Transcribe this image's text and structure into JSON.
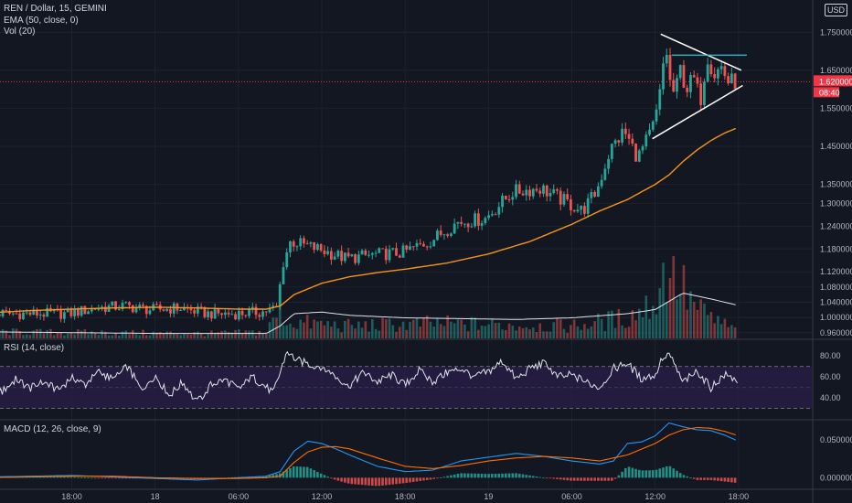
{
  "header": {
    "symbol_line": "REN / Dollar, 15, GEMINI",
    "ema_label": "EMA (50, close, 0)",
    "vol_label": "Vol (20)",
    "currency_badge": "USD"
  },
  "panes": {
    "rsi_label": "RSI (14, close)",
    "macd_label": "MACD (12, 26, close, 9)"
  },
  "price_badges": {
    "last_price": "1.620000",
    "countdown": "08:40"
  },
  "colors": {
    "background": "#131722",
    "up": "#26a69a",
    "down": "#ef5350",
    "ema": "#f7931a",
    "rsi_band": "#2a1f4a",
    "macd_line": "#2196f3",
    "signal_line": "#ff6d00",
    "last_price_badge": "#f23645",
    "grid": "#1e222d"
  },
  "chart_data": [
    {
      "type": "candlestick",
      "pane": "price",
      "yticks": [
        "1.750000",
        "1.650000",
        "1.550000",
        "1.450000",
        "1.350000",
        "1.300000",
        "1.240000",
        "1.180000",
        "1.120000",
        "1.080000",
        "1.040000",
        "1.000000",
        "0.960000"
      ],
      "ytick_values": [
        1.75,
        1.65,
        1.55,
        1.45,
        1.35,
        1.3,
        1.24,
        1.18,
        1.12,
        1.08,
        1.04,
        1.0,
        0.96
      ],
      "ylim": [
        0.945,
        1.83
      ],
      "xticks": [
        "18:00",
        "18",
        "06:00",
        "12:00",
        "18:00",
        "19",
        "06:00",
        "12:00",
        "18:00"
      ],
      "xtick_hours": [
        0,
        6,
        12,
        18,
        24,
        30,
        36,
        42,
        48
      ],
      "series": [
        {
          "name": "EMA (50, close, 0)",
          "hours": [
            -6.2,
            -3,
            0,
            3,
            6,
            9,
            12,
            14,
            15,
            16,
            18,
            20,
            22,
            24,
            27,
            30,
            33,
            36,
            38,
            40,
            42,
            43,
            44,
            45,
            46,
            47,
            48
          ],
          "values": [
            1.012,
            1.018,
            1.022,
            1.025,
            1.027,
            1.025,
            1.022,
            1.022,
            1.03,
            1.06,
            1.09,
            1.107,
            1.118,
            1.127,
            1.143,
            1.167,
            1.2,
            1.245,
            1.28,
            1.31,
            1.35,
            1.375,
            1.41,
            1.44,
            1.465,
            1.485,
            1.5
          ]
        }
      ],
      "anchors": {
        "hours": [
          -6.2,
          -3,
          0,
          2,
          4,
          6,
          8,
          10,
          12,
          14,
          15,
          15.5,
          16,
          17,
          18,
          20,
          22,
          24,
          26,
          28,
          30,
          32,
          34,
          36,
          37,
          38,
          39,
          40,
          41,
          42,
          42.5,
          43,
          43.3,
          43.7,
          44,
          44.5,
          45,
          45.5,
          46,
          46.5,
          47,
          47.5,
          48
        ],
        "close": [
          1.01,
          1.01,
          1.01,
          1.025,
          1.03,
          1.02,
          1.025,
          1.01,
          1.01,
          1.015,
          1.025,
          1.15,
          1.2,
          1.19,
          1.18,
          1.155,
          1.165,
          1.17,
          1.2,
          1.25,
          1.26,
          1.33,
          1.34,
          1.3,
          1.28,
          1.33,
          1.44,
          1.49,
          1.42,
          1.49,
          1.56,
          1.72,
          1.62,
          1.58,
          1.66,
          1.6,
          1.63,
          1.57,
          1.69,
          1.64,
          1.66,
          1.62,
          1.62
        ]
      },
      "pattern": {
        "upper_line": {
          "hours": [
            42.4,
            48.2
          ],
          "prices": [
            1.745,
            1.65
          ]
        },
        "lower_line": {
          "hours": [
            41.8,
            48.3
          ],
          "prices": [
            1.47,
            1.61
          ]
        },
        "flat_line": {
          "hours": [
            43.2,
            48.6
          ],
          "prices": [
            1.69,
            1.69
          ]
        },
        "last_price_line": 1.62
      },
      "volume": {
        "hours": [
          -6.2,
          10,
          14,
          15,
          15.5,
          20,
          26,
          36,
          40,
          41,
          42,
          43,
          44,
          45,
          46,
          48
        ],
        "relative": [
          0.08,
          0.06,
          0.08,
          0.35,
          0.2,
          0.15,
          0.18,
          0.15,
          0.25,
          0.35,
          0.45,
          0.95,
          0.6,
          0.35,
          0.25,
          0.08
        ]
      },
      "volume_ma": {
        "hours": [
          -6.2,
          6,
          14,
          15,
          16,
          18,
          20,
          24,
          28,
          32,
          36,
          40,
          42,
          43,
          44,
          46,
          48
        ],
        "relative": [
          0.08,
          0.06,
          0.06,
          0.15,
          0.3,
          0.32,
          0.28,
          0.25,
          0.24,
          0.23,
          0.25,
          0.3,
          0.35,
          0.45,
          0.55,
          0.48,
          0.4
        ]
      }
    },
    {
      "type": "line",
      "pane": "rsi",
      "name": "RSI (14, close)",
      "ylim": [
        20,
        95
      ],
      "yticks": [
        "80.00",
        "60.00",
        "40.00"
      ],
      "ytick_values": [
        80,
        60,
        40
      ],
      "band": [
        30,
        70
      ],
      "hours": [
        -6.2,
        -5,
        -4,
        -3,
        -2,
        -1,
        0,
        1,
        2,
        3,
        4,
        5,
        6,
        7,
        8,
        9,
        10,
        11,
        12,
        13,
        14,
        14.5,
        15,
        15.5,
        16,
        17,
        18,
        19,
        20,
        21,
        22,
        23,
        24,
        25,
        26,
        27,
        28,
        29,
        30,
        31,
        32,
        33,
        34,
        35,
        36,
        37,
        38,
        39,
        40,
        41,
        42,
        42.5,
        43,
        44,
        45,
        46,
        47,
        48
      ],
      "values": [
        54,
        46,
        58,
        49,
        55,
        47,
        60,
        53,
        65,
        57,
        70,
        48,
        62,
        42,
        55,
        35,
        52,
        58,
        48,
        60,
        50,
        45,
        64,
        85,
        78,
        72,
        70,
        60,
        52,
        64,
        55,
        62,
        52,
        66,
        55,
        64,
        68,
        60,
        65,
        75,
        58,
        68,
        73,
        60,
        62,
        55,
        50,
        68,
        73,
        58,
        62,
        78,
        82,
        55,
        65,
        50,
        62,
        56
      ]
    },
    {
      "type": "line",
      "pane": "macd",
      "name": "MACD (12, 26, close, 9)",
      "ylim": [
        -0.014,
        0.075
      ],
      "yticks": [
        "0.050000",
        "0.000000"
      ],
      "ytick_values": [
        0.05,
        0.0
      ],
      "series": [
        {
          "name": "MACD",
          "hours": [
            -6.2,
            -3,
            0,
            3,
            6,
            9,
            12,
            14,
            15,
            16,
            17,
            18,
            19,
            20,
            22,
            24,
            26,
            28,
            30,
            32,
            34,
            36,
            38,
            39,
            40,
            41,
            42,
            43,
            44,
            45,
            46,
            47,
            48
          ],
          "values": [
            0.001,
            0.002,
            0.003,
            0.001,
            -0.001,
            -0.003,
            0.0,
            0.002,
            0.008,
            0.035,
            0.048,
            0.045,
            0.038,
            0.03,
            0.015,
            0.008,
            0.01,
            0.022,
            0.027,
            0.032,
            0.028,
            0.022,
            0.018,
            0.022,
            0.045,
            0.047,
            0.055,
            0.072,
            0.067,
            0.063,
            0.062,
            0.056,
            0.048
          ]
        },
        {
          "name": "Signal",
          "hours": [
            -6.2,
            -3,
            0,
            3,
            6,
            9,
            12,
            14,
            15,
            16,
            17,
            18,
            19,
            20,
            22,
            24,
            26,
            28,
            30,
            32,
            34,
            36,
            38,
            40,
            42,
            43,
            44,
            45,
            46,
            47,
            48
          ],
          "values": [
            0.0,
            0.001,
            0.002,
            0.002,
            0.0,
            -0.001,
            -0.001,
            0.0,
            0.002,
            0.02,
            0.034,
            0.04,
            0.041,
            0.038,
            0.026,
            0.015,
            0.012,
            0.016,
            0.022,
            0.026,
            0.028,
            0.026,
            0.022,
            0.03,
            0.045,
            0.056,
            0.063,
            0.066,
            0.065,
            0.061,
            0.055
          ]
        }
      ]
    }
  ]
}
